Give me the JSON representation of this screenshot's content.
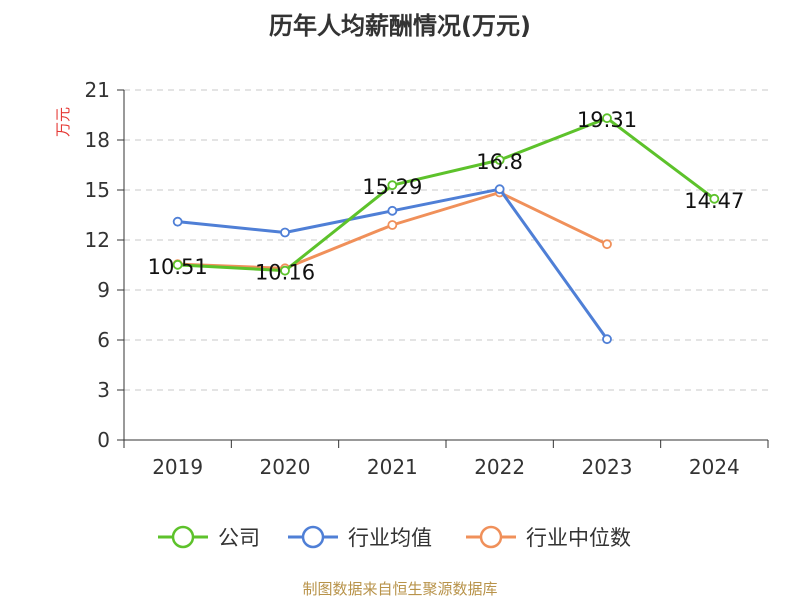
{
  "title": "历年人均薪酬情况(万元)",
  "source": "制图数据来自恒生聚源数据库",
  "chart_data": {
    "type": "line",
    "title": "历年人均薪酬情况(万元)",
    "xlabel": "",
    "ylabel": "万元",
    "categories": [
      "2019",
      "2020",
      "2021",
      "2022",
      "2023",
      "2024"
    ],
    "ylim": [
      0,
      21
    ],
    "yticks": [
      0,
      3,
      6,
      9,
      12,
      15,
      18,
      21
    ],
    "grid": true,
    "legend_position": "bottom",
    "series": [
      {
        "name": "公司",
        "color": "#5dc22b",
        "values": [
          10.51,
          10.16,
          15.29,
          16.8,
          19.31,
          14.47
        ],
        "labels": [
          "10.51",
          "10.16",
          "15.29",
          "16.8",
          "19.31",
          "14.47"
        ]
      },
      {
        "name": "行业均值",
        "color": "#4f7fd6",
        "values": [
          13.1,
          12.45,
          13.75,
          15.05,
          6.05,
          null
        ],
        "labels": []
      },
      {
        "name": "行业中位数",
        "color": "#f0905a",
        "values": [
          10.55,
          10.3,
          12.9,
          14.85,
          11.75,
          null
        ],
        "labels": []
      }
    ]
  }
}
